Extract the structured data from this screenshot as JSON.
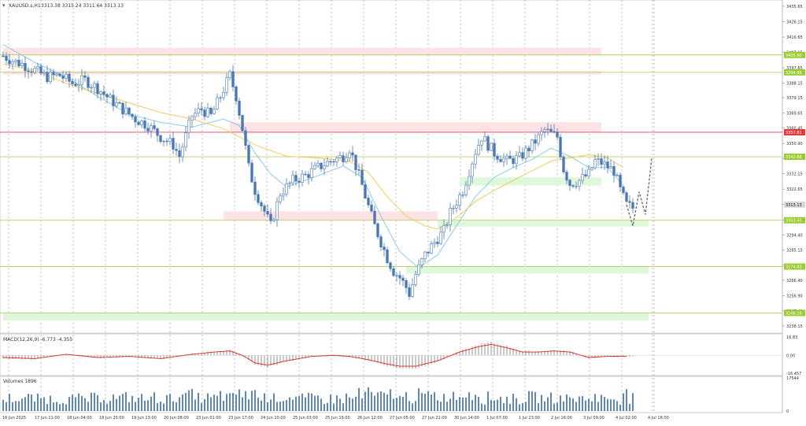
{
  "header": {
    "symbol_text": "XAUUSD.s,H1",
    "ohlc_text": "3313.38 3315.24 3311.64 3313.13"
  },
  "indicators": {
    "macd_label": "MACD(12,26,9) -6.773 -4.355",
    "volume_label": "Volumes 1896"
  },
  "colors": {
    "candle": "#4a78b5",
    "ma_fast": "#7fc7e8",
    "ma_slow": "#f2c74b",
    "macd_signal": "#e0241b",
    "macd_hist": "#a5a5a5",
    "volume": "#4a78b5",
    "resistance_zone": "#fde3e6",
    "support_zone": "#dff7da",
    "resistance_line": "#e0445a",
    "support_line": "#b7cf62",
    "support_label": "#9acd32",
    "price_label": "#d8d8d8",
    "forecast": "#666666"
  },
  "chart_data": [
    {
      "type": "candlestick",
      "instrument": "XAUUSD.s",
      "timeframe": "H1",
      "ylim": [
        3236.15,
        3435.65
      ],
      "y_ticks": [
        "3435.65",
        "3426.15",
        "3416.65",
        "3407.15",
        "3397.65",
        "3388.15",
        "3379.15",
        "3369.65",
        "3360.45",
        "3350.90",
        "3341.65",
        "3332.15",
        "3322.65",
        "3313.15",
        "3303.65",
        "3294.40",
        "3285.15",
        "3275.65",
        "3266.40",
        "3256.90",
        "3247.40",
        "3238.15"
      ],
      "x_labels": [
        "16 Jun 2025",
        "17 Jun 11:00",
        "18 Jun 04:00",
        "18 Jun 20:00",
        "19 Jun 13:00",
        "20 Jun 08:00",
        "23 Jun 01:00",
        "23 Jun 17:00",
        "24 Jun 10:00",
        "25 Jun 03:00",
        "25 Jun 19:00",
        "26 Jun 12:00",
        "27 Jun 05:00",
        "27 Jun 21:00",
        "30 Jun 14:00",
        "1 Jul 07:00",
        "1 Jul 23:00",
        "2 Jul 16:00",
        "3 Jul 09:00",
        "4 Jul 02:00",
        "4 Jul 18:00"
      ],
      "close_path": [
        [
          0,
          3405
        ],
        [
          3,
          3402
        ],
        [
          6,
          3400
        ],
        [
          10,
          3396
        ],
        [
          14,
          3392
        ],
        [
          18,
          3393
        ],
        [
          22,
          3388
        ],
        [
          26,
          3390
        ],
        [
          30,
          3385
        ],
        [
          34,
          3378
        ],
        [
          38,
          3372
        ],
        [
          42,
          3366
        ],
        [
          46,
          3362
        ],
        [
          50,
          3355
        ],
        [
          54,
          3350
        ],
        [
          56,
          3343
        ],
        [
          60,
          3368
        ],
        [
          63,
          3372
        ],
        [
          66,
          3368
        ],
        [
          69,
          3380
        ],
        [
          72,
          3393
        ],
        [
          74,
          3380
        ],
        [
          76,
          3360
        ],
        [
          78,
          3336
        ],
        [
          80,
          3322
        ],
        [
          83,
          3309
        ],
        [
          85,
          3300
        ],
        [
          88,
          3320
        ],
        [
          92,
          3328
        ],
        [
          96,
          3331
        ],
        [
          100,
          3336
        ],
        [
          104,
          3340
        ],
        [
          108,
          3343
        ],
        [
          110,
          3348
        ],
        [
          112,
          3337
        ],
        [
          114,
          3325
        ],
        [
          116,
          3312
        ],
        [
          118,
          3300
        ],
        [
          120,
          3290
        ],
        [
          122,
          3280
        ],
        [
          124,
          3272
        ],
        [
          126,
          3268
        ],
        [
          128,
          3262
        ],
        [
          129,
          3258
        ],
        [
          131,
          3270
        ],
        [
          134,
          3282
        ],
        [
          137,
          3290
        ],
        [
          140,
          3297
        ],
        [
          142,
          3308
        ],
        [
          146,
          3322
        ],
        [
          150,
          3346
        ],
        [
          152,
          3355
        ],
        [
          156,
          3345
        ],
        [
          160,
          3340
        ],
        [
          164,
          3342
        ],
        [
          168,
          3350
        ],
        [
          172,
          3359
        ],
        [
          176,
          3355
        ],
        [
          178,
          3335
        ],
        [
          180,
          3326
        ],
        [
          183,
          3328
        ],
        [
          186,
          3332
        ],
        [
          188,
          3340
        ],
        [
          190,
          3339
        ],
        [
          194,
          3334
        ],
        [
          196,
          3322
        ],
        [
          198,
          3313
        ],
        [
          200,
          3311
        ]
      ],
      "moving_averages": [
        {
          "color_key": "ma_fast",
          "points": [
            [
              0,
              3412
            ],
            [
              10,
              3401
            ],
            [
              20,
              3392
            ],
            [
              30,
              3380
            ],
            [
              40,
              3369
            ],
            [
              50,
              3364
            ],
            [
              60,
              3361
            ],
            [
              70,
              3366
            ],
            [
              75,
              3362
            ],
            [
              80,
              3345
            ],
            [
              85,
              3332
            ],
            [
              90,
              3324
            ],
            [
              100,
              3331
            ],
            [
              108,
              3337
            ],
            [
              114,
              3330
            ],
            [
              120,
              3306
            ],
            [
              126,
              3284
            ],
            [
              132,
              3274
            ],
            [
              138,
              3282
            ],
            [
              144,
              3300
            ],
            [
              150,
              3318
            ],
            [
              156,
              3330
            ],
            [
              162,
              3336
            ],
            [
              168,
              3341
            ],
            [
              174,
              3348
            ],
            [
              180,
              3343
            ],
            [
              186,
              3336
            ],
            [
              192,
              3336
            ],
            [
              197,
              3325
            ]
          ]
        },
        {
          "color_key": "ma_slow",
          "points": [
            [
              0,
              3400
            ],
            [
              10,
              3396
            ],
            [
              20,
              3388
            ],
            [
              30,
              3382
            ],
            [
              40,
              3376
            ],
            [
              50,
              3370
            ],
            [
              60,
              3366
            ],
            [
              70,
              3360
            ],
            [
              80,
              3350
            ],
            [
              90,
              3343
            ],
            [
              100,
              3342
            ],
            [
              110,
              3340
            ],
            [
              116,
              3333
            ],
            [
              122,
              3318
            ],
            [
              128,
              3306
            ],
            [
              134,
              3300
            ],
            [
              138,
              3298
            ],
            [
              144,
              3305
            ],
            [
              150,
              3315
            ],
            [
              156,
              3322
            ],
            [
              162,
              3328
            ],
            [
              168,
              3334
            ],
            [
              174,
              3340
            ],
            [
              180,
              3342
            ],
            [
              186,
              3344
            ],
            [
              192,
              3342
            ],
            [
              197,
              3336
            ]
          ]
        }
      ],
      "levels": [
        {
          "price": 3405.6,
          "kind": "support",
          "label": "3405.60"
        },
        {
          "price": 3394.86,
          "kind": "support",
          "label": "3394.86"
        },
        {
          "price": 3357.81,
          "kind": "resistance",
          "label": "3357.81"
        },
        {
          "price": 3342.68,
          "kind": "support",
          "label": "3342.68"
        },
        {
          "price": 3303.45,
          "kind": "support",
          "label": "3303.45"
        },
        {
          "price": 3274.83,
          "kind": "support",
          "label": "3274.83"
        },
        {
          "price": 3246.16,
          "kind": "support",
          "label": "3246.16"
        }
      ],
      "current_price": {
        "price": 3313.13,
        "label": "3313.13"
      },
      "zones": [
        {
          "kind": "resistance",
          "from_idx": 0,
          "to_idx": 190,
          "y_top": 3410,
          "y_bottom": 3405.6
        },
        {
          "kind": "resistance",
          "from_idx": 0,
          "to_idx": 190,
          "y_top": 3395.5,
          "y_bottom": 3393.5
        },
        {
          "kind": "resistance",
          "from_idx": 72,
          "to_idx": 190,
          "y_top": 3364,
          "y_bottom": 3357.8
        },
        {
          "kind": "resistance",
          "from_idx": 70,
          "to_idx": 138,
          "y_top": 3309,
          "y_bottom": 3303.45
        },
        {
          "kind": "support",
          "from_idx": 145,
          "to_idx": 190,
          "y_top": 3330,
          "y_bottom": 3325
        },
        {
          "kind": "support",
          "from_idx": 138,
          "to_idx": 205,
          "y_top": 3303.45,
          "y_bottom": 3299.5
        },
        {
          "kind": "support",
          "from_idx": 128,
          "to_idx": 205,
          "y_top": 3274.83,
          "y_bottom": 3270.5
        },
        {
          "kind": "support",
          "from_idx": 0,
          "to_idx": 205,
          "y_top": 3246.16,
          "y_bottom": 3241.5
        }
      ],
      "forecast_path": [
        [
          198,
          3313
        ],
        [
          200,
          3300
        ],
        [
          202,
          3321
        ],
        [
          204,
          3307
        ],
        [
          206,
          3342
        ]
      ]
    },
    {
      "type": "bar",
      "name": "MACD(12,26,9)",
      "ylim": [
        -16.457,
        16.83
      ],
      "y_ticks": [
        "16.83",
        "0.00",
        "-16.457"
      ],
      "signal_path": [
        [
          0,
          -2
        ],
        [
          10,
          -3
        ],
        [
          20,
          1
        ],
        [
          30,
          -2
        ],
        [
          40,
          -1
        ],
        [
          50,
          -3
        ],
        [
          60,
          1
        ],
        [
          67,
          3
        ],
        [
          72,
          4
        ],
        [
          76,
          0
        ],
        [
          80,
          -7
        ],
        [
          84,
          -9
        ],
        [
          90,
          -5
        ],
        [
          98,
          -1
        ],
        [
          105,
          0
        ],
        [
          110,
          -1
        ],
        [
          116,
          -4
        ],
        [
          122,
          -8
        ],
        [
          126,
          -10
        ],
        [
          131,
          -10
        ],
        [
          138,
          -5
        ],
        [
          145,
          3
        ],
        [
          151,
          8
        ],
        [
          155,
          10
        ],
        [
          160,
          7
        ],
        [
          165,
          3
        ],
        [
          170,
          3
        ],
        [
          175,
          4
        ],
        [
          180,
          3
        ],
        [
          186,
          -2
        ],
        [
          192,
          -1
        ],
        [
          198,
          -1
        ]
      ]
    },
    {
      "type": "bar",
      "name": "Volumes",
      "ylim": [
        0,
        17544
      ],
      "y_ticks": [
        "17544",
        "0"
      ]
    }
  ]
}
